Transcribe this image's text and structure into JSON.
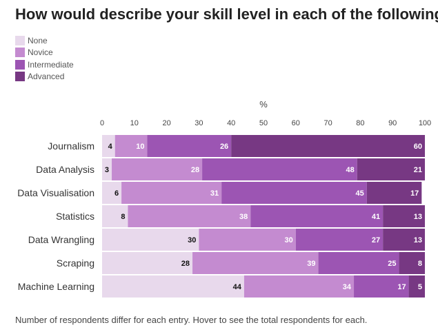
{
  "chart_data": {
    "type": "bar",
    "orientation": "horizontal",
    "stacked": true,
    "title": "How would describe your skill level in each of the following?",
    "xlabel": "%",
    "ylabel": "",
    "xlim": [
      0,
      100
    ],
    "xticks": [
      0,
      10,
      20,
      30,
      40,
      50,
      60,
      70,
      80,
      90,
      100
    ],
    "xtick_labels": [
      "0",
      "10",
      "20",
      "30",
      "40",
      "50",
      "60",
      "70",
      "80",
      "90",
      "100"
    ],
    "legend_position": "top-left",
    "categories": [
      "Journalism",
      "Data Analysis",
      "Data Visualisation",
      "Statistics",
      "Data Wrangling",
      "Scraping",
      "Machine Learning"
    ],
    "series": [
      {
        "name": "None",
        "color": "#e8d9ec",
        "label_color": "#111111",
        "values": [
          4,
          3,
          6,
          8,
          30,
          28,
          44
        ]
      },
      {
        "name": "Novice",
        "color": "#c48bd0",
        "label_color": "#ffffff",
        "values": [
          10,
          28,
          31,
          38,
          30,
          39,
          34
        ]
      },
      {
        "name": "Intermediate",
        "color": "#9c55b3",
        "label_color": "#ffffff",
        "values": [
          26,
          48,
          45,
          41,
          27,
          25,
          17
        ]
      },
      {
        "name": "Advanced",
        "color": "#773883",
        "label_color": "#ffffff",
        "values": [
          60,
          21,
          17,
          13,
          13,
          8,
          5
        ]
      }
    ]
  },
  "footnote": "Number of respondents differ for each entry. Hover to see the total respondents for each."
}
